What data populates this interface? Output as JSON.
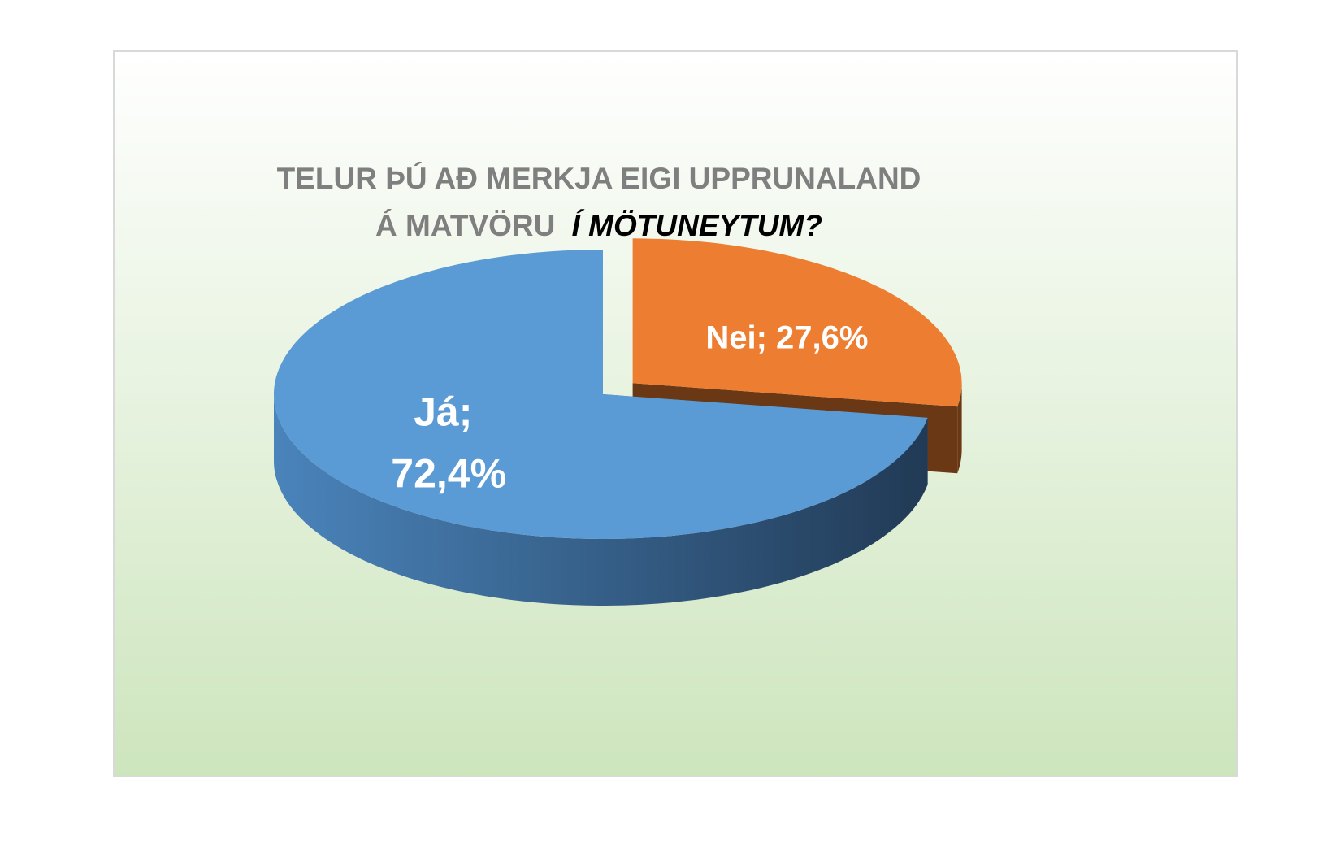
{
  "chart_data": {
    "type": "pie3d",
    "title": [
      "TELUR ÞÚ AÐ MERKJA EIGI UPPRUNALAND",
      "Á MATVÖRU",
      "Í MÖTUNEYTUM?"
    ],
    "categories": [
      "Nei",
      "Já"
    ],
    "values": [
      27.6,
      72.4
    ],
    "value_labels": [
      "Nei; 27,6%",
      "Já; 72,4%"
    ],
    "colors": [
      "#ed7d31",
      "#5b9bd5"
    ],
    "exploded": [
      true,
      false
    ]
  }
}
